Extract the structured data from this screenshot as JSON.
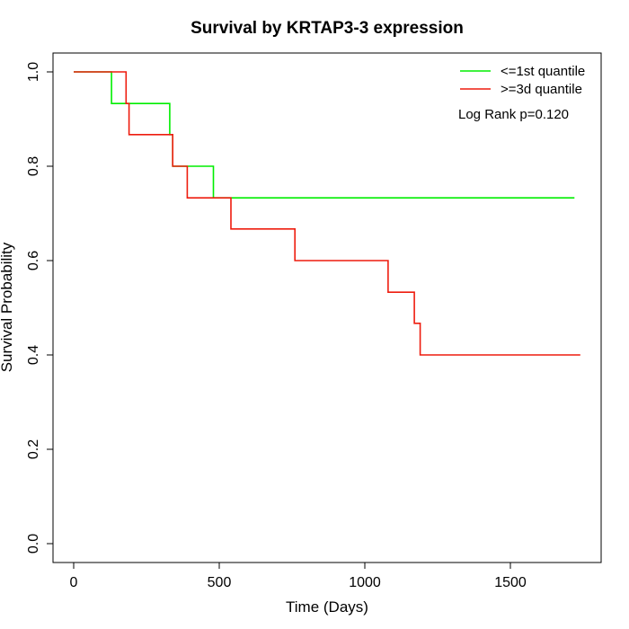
{
  "chart_data": {
    "type": "line",
    "title": "Survival by KRTAP3-3 expression",
    "xlabel": "Time (Days)",
    "ylabel": "Survival Probability",
    "xlim": [
      0,
      1750
    ],
    "ylim": [
      0,
      1
    ],
    "x_ticks": [
      0,
      500,
      1000,
      1500
    ],
    "x_tick_labels": [
      "0",
      "500",
      "1000",
      "1500"
    ],
    "y_ticks": [
      0,
      0.2,
      0.4,
      0.6,
      0.8,
      1.0
    ],
    "y_tick_labels": [
      "0.0",
      "0.2",
      "0.4",
      "0.6",
      "0.8",
      "1.0"
    ],
    "legend_position": "top-right",
    "annotation": "Log Rank p=0.120",
    "series": [
      {
        "name": "<=1st quantile",
        "color": "#00ee00",
        "step_points": [
          [
            0,
            1.0
          ],
          [
            130,
            1.0
          ],
          [
            130,
            0.933
          ],
          [
            330,
            0.933
          ],
          [
            330,
            0.867
          ],
          [
            340,
            0.867
          ],
          [
            340,
            0.8
          ],
          [
            480,
            0.8
          ],
          [
            480,
            0.733
          ],
          [
            1720,
            0.733
          ]
        ]
      },
      {
        "name": ">=3d quantile",
        "color": "#ee1c0e",
        "step_points": [
          [
            0,
            1.0
          ],
          [
            180,
            1.0
          ],
          [
            180,
            0.933
          ],
          [
            190,
            0.933
          ],
          [
            190,
            0.867
          ],
          [
            340,
            0.867
          ],
          [
            340,
            0.8
          ],
          [
            390,
            0.8
          ],
          [
            390,
            0.733
          ],
          [
            540,
            0.733
          ],
          [
            540,
            0.667
          ],
          [
            760,
            0.667
          ],
          [
            760,
            0.6
          ],
          [
            1080,
            0.6
          ],
          [
            1080,
            0.533
          ],
          [
            1170,
            0.533
          ],
          [
            1170,
            0.467
          ],
          [
            1190,
            0.467
          ],
          [
            1190,
            0.4
          ],
          [
            1740,
            0.4
          ]
        ]
      }
    ]
  }
}
